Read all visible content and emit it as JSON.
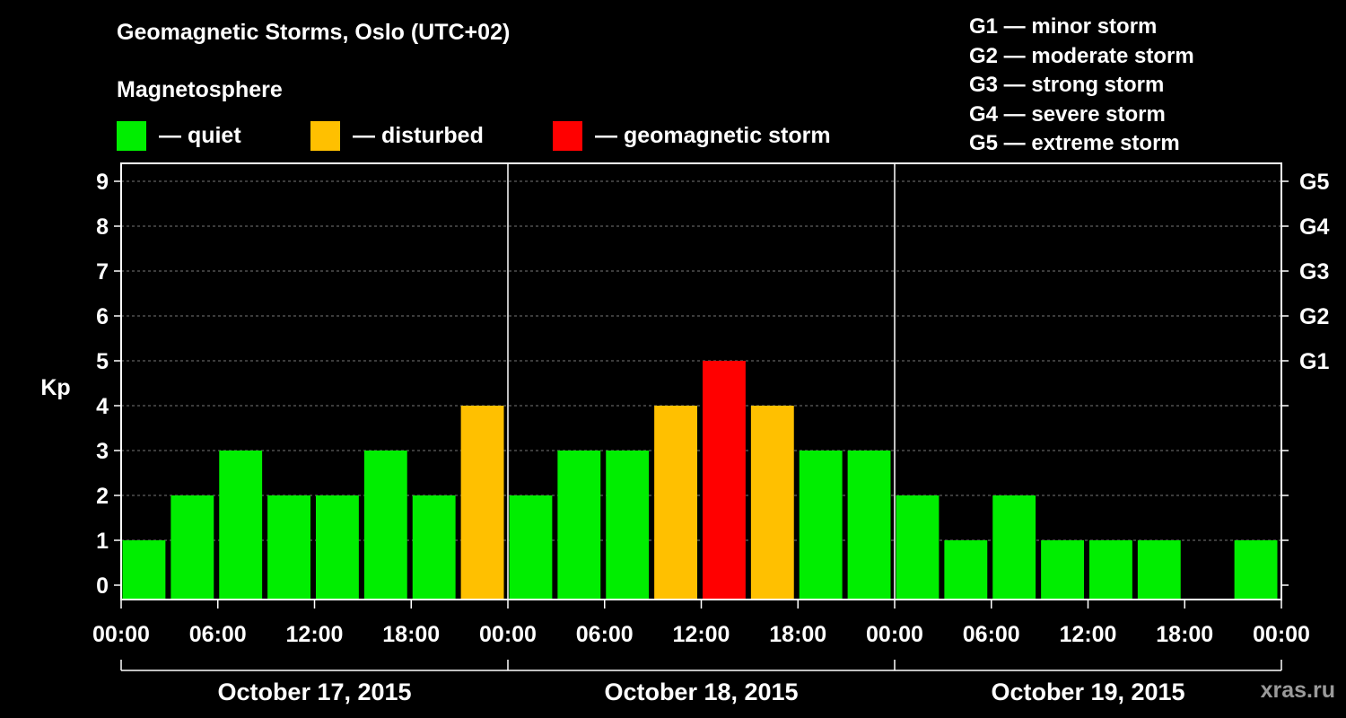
{
  "title": "Geomagnetic Storms, Oslo (UTC+02)",
  "legend": {
    "heading": "Magnetosphere",
    "items": [
      {
        "label": "— quiet",
        "color": "#00ee00"
      },
      {
        "label": "— disturbed",
        "color": "#ffc000"
      },
      {
        "label": "— geomagnetic storm",
        "color": "#ff0000"
      }
    ]
  },
  "storm_scale": [
    "G1 — minor storm",
    "G2 — moderate storm",
    "G3 — strong storm",
    "G4 — severe storm",
    "G5 — extreme storm"
  ],
  "watermark": "xras.ru",
  "chart_data": {
    "type": "bar",
    "ylabel": "Kp",
    "ylim": [
      0,
      9
    ],
    "yticks": [
      0,
      1,
      2,
      3,
      4,
      5,
      6,
      7,
      8,
      9
    ],
    "right_ticks": [
      {
        "kp": 5,
        "label": "G1"
      },
      {
        "kp": 6,
        "label": "G2"
      },
      {
        "kp": 7,
        "label": "G3"
      },
      {
        "kp": 8,
        "label": "G4"
      },
      {
        "kp": 9,
        "label": "G5"
      }
    ],
    "x_tick_labels": [
      "00:00",
      "06:00",
      "12:00",
      "18:00",
      "00:00",
      "06:00",
      "12:00",
      "18:00",
      "00:00",
      "06:00",
      "12:00",
      "18:00",
      "00:00"
    ],
    "days": [
      "October 17, 2015",
      "October 18, 2015",
      "October 19, 2015"
    ],
    "hours_total": 72,
    "bars": [
      {
        "start": 0,
        "end": 3,
        "kp": 1
      },
      {
        "start": 3,
        "end": 6,
        "kp": 2
      },
      {
        "start": 6,
        "end": 9,
        "kp": 3
      },
      {
        "start": 9,
        "end": 12,
        "kp": 2
      },
      {
        "start": 12,
        "end": 15,
        "kp": 2
      },
      {
        "start": 15,
        "end": 18,
        "kp": 3
      },
      {
        "start": 18,
        "end": 21,
        "kp": 2
      },
      {
        "start": 21,
        "end": 24,
        "kp": 4
      },
      {
        "start": 24,
        "end": 27,
        "kp": 2
      },
      {
        "start": 27,
        "end": 30,
        "kp": 3
      },
      {
        "start": 30,
        "end": 33,
        "kp": 3
      },
      {
        "start": 33,
        "end": 36,
        "kp": 4
      },
      {
        "start": 36,
        "end": 39,
        "kp": 5
      },
      {
        "start": 39,
        "end": 42,
        "kp": 4
      },
      {
        "start": 42,
        "end": 45,
        "kp": 3
      },
      {
        "start": 45,
        "end": 48,
        "kp": 3
      },
      {
        "start": 48,
        "end": 51,
        "kp": 2
      },
      {
        "start": 51,
        "end": 54,
        "kp": 1
      },
      {
        "start": 54,
        "end": 57,
        "kp": 2
      },
      {
        "start": 57,
        "end": 60,
        "kp": 1
      },
      {
        "start": 60,
        "end": 63,
        "kp": 1
      },
      {
        "start": 63,
        "end": 66,
        "kp": 1
      },
      {
        "start": 66,
        "end": 69,
        "kp": 0
      },
      {
        "start": 69,
        "end": 72,
        "kp": 1
      }
    ]
  }
}
